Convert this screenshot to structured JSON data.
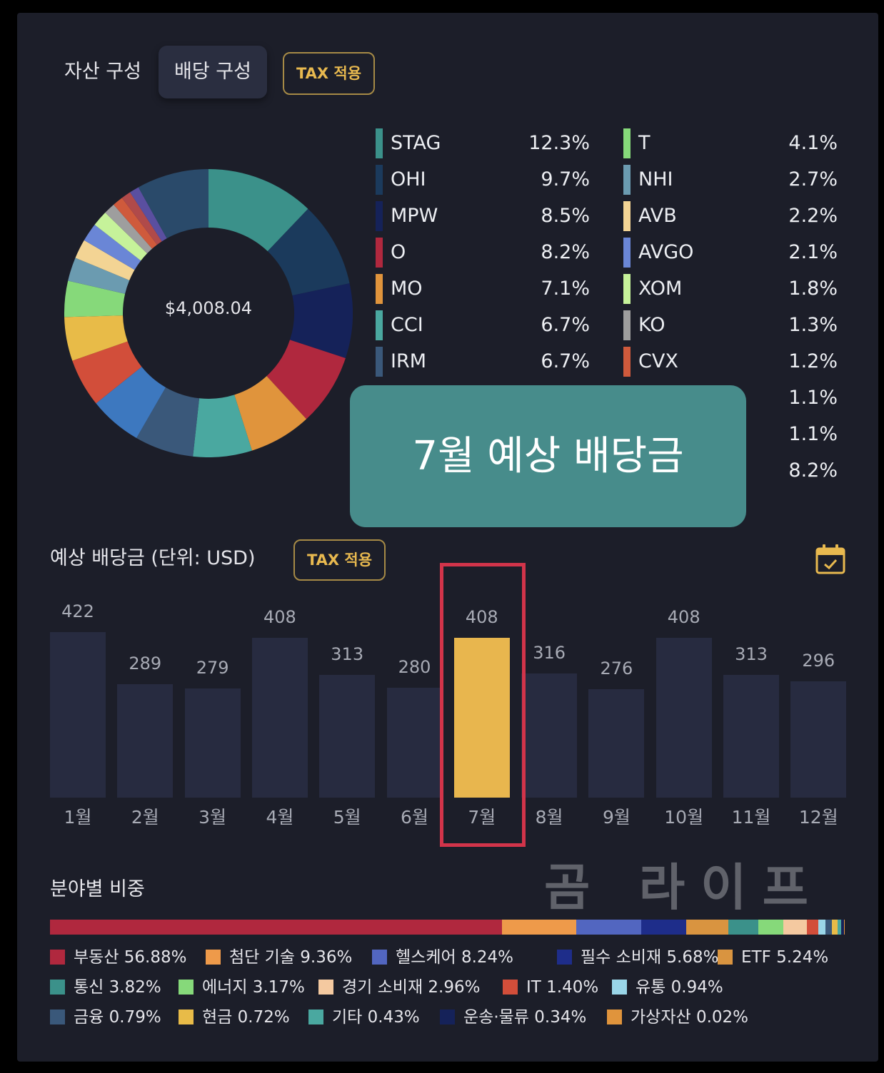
{
  "tabs": {
    "asset": "자산 구성",
    "dividend": "배당 구성",
    "tax": "TAX 적용"
  },
  "donut": {
    "total": "$4,008.04"
  },
  "holdings": [
    {
      "name": "STAG",
      "pct": "12.3%",
      "color": "#3b918a"
    },
    {
      "name": "OHI",
      "pct": "9.7%",
      "color": "#1b3a5c"
    },
    {
      "name": "MPW",
      "pct": "8.5%",
      "color": "#152259"
    },
    {
      "name": "O",
      "pct": "8.2%",
      "color": "#b0283e"
    },
    {
      "name": "MO",
      "pct": "7.1%",
      "color": "#e0943c"
    },
    {
      "name": "CCI",
      "pct": "6.7%",
      "color": "#4aa8a0"
    },
    {
      "name": "IRM",
      "pct": "6.7%",
      "color": "#3a587a"
    },
    {
      "name": "",
      "pct": "",
      "color": "#3d78bf"
    },
    {
      "name": "",
      "pct": "",
      "color": "#d24e3a"
    },
    {
      "name": "",
      "pct": "",
      "color": "#e8bb48"
    },
    {
      "name": "T",
      "pct": "4.1%",
      "color": "#86d97a"
    },
    {
      "name": "NHI",
      "pct": "2.7%",
      "color": "#6b9bb0"
    },
    {
      "name": "AVB",
      "pct": "2.2%",
      "color": "#f3d494"
    },
    {
      "name": "AVGO",
      "pct": "2.1%",
      "color": "#6a86d6"
    },
    {
      "name": "XOM",
      "pct": "1.8%",
      "color": "#c6f29a"
    },
    {
      "name": "KO",
      "pct": "1.3%",
      "color": "#9e9e9e"
    },
    {
      "name": "CVX",
      "pct": "1.2%",
      "color": "#cf5a3c"
    },
    {
      "name": "",
      "pct": "1.1%",
      "color": "#b04a4a"
    },
    {
      "name": "",
      "pct": "1.1%",
      "color": "#5a4fa0"
    },
    {
      "name": "",
      "pct": "8.2%",
      "color": "#2a4a6a"
    }
  ],
  "overlay": {
    "text": "7월 예상 배당금"
  },
  "dividend_chart": {
    "title": "예상 배당금 (단위: USD)",
    "tax": "TAX 적용"
  },
  "chart_data": {
    "type": "bar",
    "categories": [
      "1월",
      "2월",
      "3월",
      "4월",
      "5월",
      "6월",
      "7월",
      "8월",
      "9월",
      "10월",
      "11월",
      "12월"
    ],
    "values": [
      422,
      289,
      279,
      408,
      313,
      280,
      408,
      316,
      276,
      408,
      313,
      296
    ],
    "highlight": "7월",
    "ylim": [
      0,
      422
    ]
  },
  "watermark": "곰 라이프",
  "sector": {
    "title": "분야별 비중",
    "items": [
      {
        "name": "부동산",
        "pct": "56.88%",
        "value": 56.88,
        "color": "#b0283e"
      },
      {
        "name": "첨단 기술",
        "pct": "9.36%",
        "value": 9.36,
        "color": "#ee9a4a"
      },
      {
        "name": "헬스케어",
        "pct": "8.24%",
        "value": 8.24,
        "color": "#5266c0"
      },
      {
        "name": "필수 소비재",
        "pct": "5.68%",
        "value": 5.68,
        "color": "#1e2d8a"
      },
      {
        "name": "ETF",
        "pct": "5.24%",
        "value": 5.24,
        "color": "#d99440"
      },
      {
        "name": "통신",
        "pct": "3.82%",
        "value": 3.82,
        "color": "#3b918a"
      },
      {
        "name": "에너지",
        "pct": "3.17%",
        "value": 3.17,
        "color": "#86d97a"
      },
      {
        "name": "경기 소비재",
        "pct": "2.96%",
        "value": 2.96,
        "color": "#f4c9a0"
      },
      {
        "name": "IT",
        "pct": "1.40%",
        "value": 1.4,
        "color": "#d24e3a"
      },
      {
        "name": "유통",
        "pct": "0.94%",
        "value": 0.94,
        "color": "#9ad6e8"
      },
      {
        "name": "금융",
        "pct": "0.79%",
        "value": 0.79,
        "color": "#3a587a"
      },
      {
        "name": "현금",
        "pct": "0.72%",
        "value": 0.72,
        "color": "#e8bb48"
      },
      {
        "name": "기타",
        "pct": "0.43%",
        "value": 0.43,
        "color": "#4aa8a0"
      },
      {
        "name": "운송·물류",
        "pct": "0.34%",
        "value": 0.34,
        "color": "#152259"
      },
      {
        "name": "가상자산",
        "pct": "0.02%",
        "value": 0.02,
        "color": "#e0943c"
      }
    ]
  }
}
